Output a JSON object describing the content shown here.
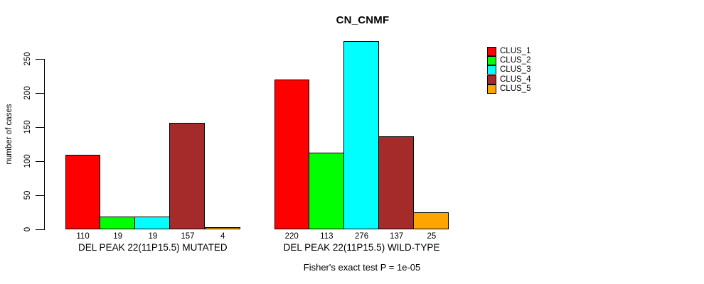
{
  "chart_data": {
    "type": "bar",
    "title": "CN_CNMF",
    "ylabel": "number of cases",
    "xlabel": "",
    "yticks": [
      0,
      50,
      100,
      150,
      200,
      250
    ],
    "ylim": [
      0,
      276
    ],
    "grid": false,
    "legend_position": "right",
    "categories": [
      "DEL PEAK 22(11P15.5) MUTATED",
      "DEL PEAK 22(11P15.5) WILD-TYPE"
    ],
    "series": [
      {
        "name": "CLUS_1",
        "color": "#FF0000",
        "values": [
          110,
          220
        ]
      },
      {
        "name": "CLUS_2",
        "color": "#00FF00",
        "values": [
          19,
          113
        ]
      },
      {
        "name": "CLUS_3",
        "color": "#00FFFF",
        "values": [
          19,
          276
        ]
      },
      {
        "name": "CLUS_4",
        "color": "#A52A2A",
        "values": [
          157,
          137
        ]
      },
      {
        "name": "CLUS_5",
        "color": "#FFA500",
        "values": [
          4,
          25
        ]
      }
    ],
    "bar_value_labels_shown": true,
    "annotation": "Fisher's exact test P = 1e-05"
  }
}
